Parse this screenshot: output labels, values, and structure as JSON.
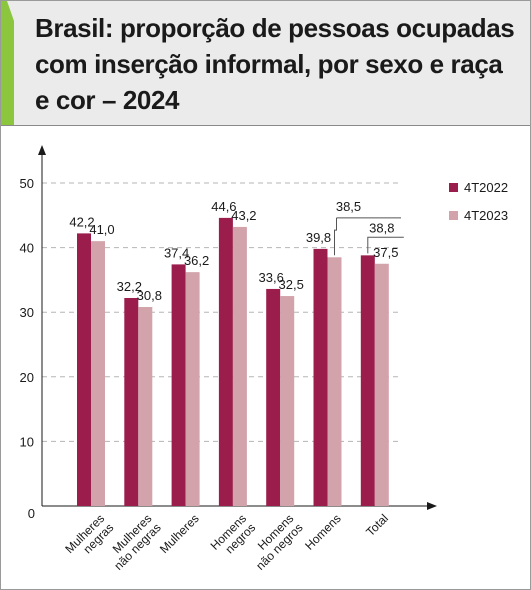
{
  "header": {
    "title": "Brasil: proporção de pessoas ocupadas com inserção informal, por sexo e raça e cor – 2024"
  },
  "colors": {
    "series_2022": "#9b1d4c",
    "series_2023": "#d2a3aa",
    "accent": "#8cc63f",
    "title_band": "#ebebeb"
  },
  "chart_data": {
    "type": "bar",
    "title": "Brasil: proporção de pessoas ocupadas com inserção informal, por sexo e raça e cor – 2024",
    "xlabel": "",
    "ylabel": "",
    "ylim": [
      0,
      50
    ],
    "yticks": [
      0,
      10,
      20,
      30,
      40,
      50
    ],
    "grid": true,
    "legend_position": "top-right",
    "categories": [
      [
        "Mulheres",
        "negras"
      ],
      [
        "Mulheres",
        "não negras"
      ],
      [
        "Mulheres"
      ],
      [
        "Homens",
        "negros"
      ],
      [
        "Homens",
        "não negros"
      ],
      [
        "Homens"
      ],
      [
        "Total"
      ]
    ],
    "series": [
      {
        "name": "4T2022",
        "values": [
          42.2,
          32.2,
          37.4,
          44.6,
          33.6,
          39.8,
          38.8
        ]
      },
      {
        "name": "4T2023",
        "values": [
          41.0,
          30.8,
          36.2,
          43.2,
          32.5,
          38.5,
          37.5
        ]
      }
    ],
    "value_labels": [
      [
        "42,2",
        "32,2",
        "37,4",
        "44,6",
        "33,6",
        "39,8",
        "38,8"
      ],
      [
        "41,0",
        "30,8",
        "36,2",
        "43,2",
        "32,5",
        "38,5",
        "37,5"
      ]
    ]
  }
}
